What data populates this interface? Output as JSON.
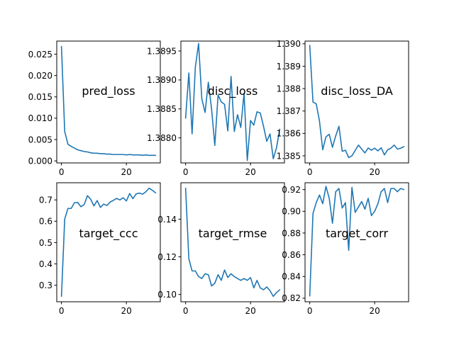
{
  "chart_data": [
    {
      "type": "line",
      "title": "pred_loss",
      "x": [
        0,
        1,
        2,
        3,
        4,
        5,
        6,
        7,
        8,
        9,
        10,
        11,
        12,
        13,
        14,
        15,
        16,
        17,
        18,
        19,
        20,
        21,
        22,
        23,
        24,
        25,
        26,
        27,
        28,
        29
      ],
      "values": [
        0.0268,
        0.0069,
        0.0039,
        0.0034,
        0.003,
        0.0026,
        0.0024,
        0.0022,
        0.0021,
        0.0019,
        0.0018,
        0.0018,
        0.0017,
        0.0017,
        0.0016,
        0.0016,
        0.0015,
        0.0015,
        0.0015,
        0.0015,
        0.0014,
        0.0015,
        0.0014,
        0.0014,
        0.0014,
        0.0013,
        0.0014,
        0.0013,
        0.0013,
        0.0013
      ],
      "xlim": [
        -1.45,
        30.45
      ],
      "ylim": [
        -0.00047,
        0.02807
      ],
      "xticks": [
        0,
        20
      ],
      "yticks": [
        0.0,
        0.005,
        0.01,
        0.015,
        0.02,
        0.025
      ],
      "xtick_labels": [
        "0",
        "20"
      ],
      "ytick_labels": [
        "0.000",
        "0.005",
        "0.010",
        "0.015",
        "0.020",
        "0.025"
      ],
      "color": "#1f77b4"
    },
    {
      "type": "line",
      "title": "disc_loss",
      "x": [
        0,
        1,
        2,
        3,
        4,
        5,
        6,
        7,
        8,
        9,
        10,
        11,
        12,
        13,
        14,
        15,
        16,
        17,
        18,
        19,
        20,
        21,
        22,
        23,
        24,
        25,
        26,
        27,
        28,
        29
      ],
      "values": [
        1.38834,
        1.38912,
        1.38807,
        1.38922,
        1.38963,
        1.38867,
        1.38844,
        1.38896,
        1.3885,
        1.38787,
        1.38874,
        1.38862,
        1.38858,
        1.38812,
        1.38906,
        1.38811,
        1.3884,
        1.38818,
        1.38877,
        1.38761,
        1.3883,
        1.38822,
        1.38845,
        1.38843,
        1.3882,
        1.38794,
        1.38807,
        1.38764,
        1.38783,
        1.38815
      ],
      "xlim": [
        -1.45,
        30.45
      ],
      "ylim": [
        1.387568,
        1.389671
      ],
      "xticks": [
        0,
        20
      ],
      "yticks": [
        1.388,
        1.3885,
        1.389,
        1.3895
      ],
      "xtick_labels": [
        "0",
        "20"
      ],
      "ytick_labels": [
        "1.3880",
        "1.3885",
        "1.3890",
        "1.3895"
      ],
      "color": "#1f77b4"
    },
    {
      "type": "line",
      "title": "disc_loss_DA",
      "x": [
        0,
        1,
        2,
        3,
        4,
        5,
        6,
        7,
        8,
        9,
        10,
        11,
        12,
        13,
        14,
        15,
        16,
        17,
        18,
        19,
        20,
        21,
        22,
        23,
        24,
        25,
        26,
        27,
        28,
        29
      ],
      "values": [
        1.38993,
        1.3874,
        1.38732,
        1.38655,
        1.38527,
        1.38585,
        1.38596,
        1.38538,
        1.38589,
        1.38632,
        1.3852,
        1.38525,
        1.38492,
        1.385,
        1.38524,
        1.38548,
        1.3853,
        1.38513,
        1.38535,
        1.38525,
        1.38534,
        1.38522,
        1.38536,
        1.38504,
        1.38527,
        1.38534,
        1.38548,
        1.3853,
        1.38534,
        1.38541
      ],
      "xlim": [
        -1.45,
        30.45
      ],
      "ylim": [
        1.384683,
        1.390121
      ],
      "xticks": [
        0,
        20
      ],
      "yticks": [
        1.385,
        1.386,
        1.387,
        1.388,
        1.389,
        1.39
      ],
      "xtick_labels": [
        "0",
        "20"
      ],
      "ytick_labels": [
        "1.385",
        "1.386",
        "1.387",
        "1.388",
        "1.389",
        "1.390"
      ],
      "color": "#1f77b4"
    },
    {
      "type": "line",
      "title": "target_ccc",
      "x": [
        0,
        1,
        2,
        3,
        4,
        5,
        6,
        7,
        8,
        9,
        10,
        11,
        12,
        13,
        14,
        15,
        16,
        17,
        18,
        19,
        20,
        21,
        22,
        23,
        24,
        25,
        26,
        27,
        28,
        29
      ],
      "values": [
        0.248,
        0.61,
        0.66,
        0.66,
        0.687,
        0.688,
        0.668,
        0.678,
        0.72,
        0.703,
        0.672,
        0.697,
        0.665,
        0.68,
        0.674,
        0.69,
        0.698,
        0.707,
        0.7,
        0.71,
        0.695,
        0.73,
        0.706,
        0.728,
        0.732,
        0.727,
        0.738,
        0.755,
        0.745,
        0.733
      ],
      "xlim": [
        -1.45,
        30.45
      ],
      "ylim": [
        0.2226,
        0.7804
      ],
      "xticks": [
        0,
        20
      ],
      "yticks": [
        0.3,
        0.4,
        0.5,
        0.6,
        0.7
      ],
      "xtick_labels": [
        "0",
        "20"
      ],
      "ytick_labels": [
        "0.3",
        "0.4",
        "0.5",
        "0.6",
        "0.7"
      ],
      "color": "#1f77b4"
    },
    {
      "type": "line",
      "title": "target_rmse",
      "x": [
        0,
        1,
        2,
        3,
        4,
        5,
        6,
        7,
        8,
        9,
        10,
        11,
        12,
        13,
        14,
        15,
        16,
        17,
        18,
        19,
        20,
        21,
        22,
        23,
        24,
        25,
        26,
        27,
        28,
        29
      ],
      "values": [
        0.1565,
        0.119,
        0.1125,
        0.1125,
        0.1095,
        0.1085,
        0.111,
        0.1105,
        0.1045,
        0.106,
        0.1105,
        0.1075,
        0.113,
        0.109,
        0.111,
        0.1095,
        0.1085,
        0.1075,
        0.1085,
        0.1075,
        0.109,
        0.1035,
        0.1075,
        0.1035,
        0.1025,
        0.104,
        0.102,
        0.099,
        0.101,
        0.1025
      ],
      "xlim": [
        -1.45,
        30.45
      ],
      "ylim": [
        0.09613,
        0.15937
      ],
      "xticks": [
        0,
        20
      ],
      "yticks": [
        0.1,
        0.12,
        0.14
      ],
      "xtick_labels": [
        "0",
        "20"
      ],
      "ytick_labels": [
        "0.10",
        "0.12",
        "0.14"
      ],
      "color": "#1f77b4"
    },
    {
      "type": "line",
      "title": "target_corr",
      "x": [
        0,
        1,
        2,
        3,
        4,
        5,
        6,
        7,
        8,
        9,
        10,
        11,
        12,
        13,
        14,
        15,
        16,
        17,
        18,
        19,
        20,
        21,
        22,
        23,
        24,
        25,
        26,
        27,
        28,
        29
      ],
      "values": [
        0.822,
        0.898,
        0.908,
        0.915,
        0.907,
        0.923,
        0.912,
        0.889,
        0.918,
        0.921,
        0.903,
        0.908,
        0.864,
        0.922,
        0.899,
        0.904,
        0.909,
        0.902,
        0.912,
        0.896,
        0.9,
        0.907,
        0.918,
        0.921,
        0.908,
        0.921,
        0.921,
        0.918,
        0.921,
        0.92
      ],
      "xlim": [
        -1.45,
        30.45
      ],
      "ylim": [
        0.8167,
        0.9263
      ],
      "xticks": [
        0,
        20
      ],
      "yticks": [
        0.82,
        0.84,
        0.86,
        0.88,
        0.9,
        0.92
      ],
      "xtick_labels": [
        "0",
        "20"
      ],
      "ytick_labels": [
        "0.82",
        "0.84",
        "0.86",
        "0.88",
        "0.90",
        "0.92"
      ],
      "color": "#1f77b4"
    }
  ]
}
